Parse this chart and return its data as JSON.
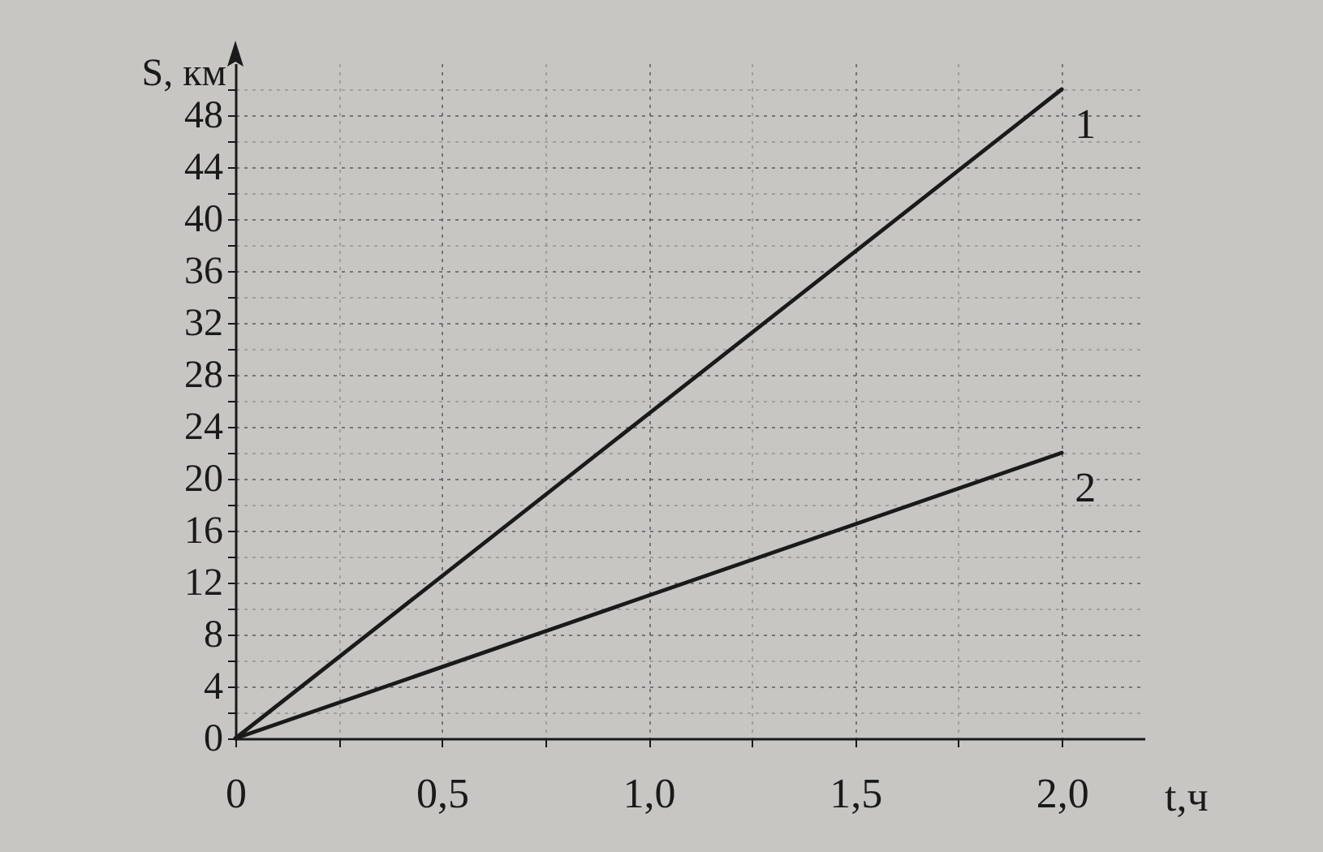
{
  "chart_data": {
    "type": "line",
    "xlabel": "t,ч",
    "ylabel": "S, км",
    "x": [
      0,
      2
    ],
    "series": [
      {
        "name": "1",
        "color": "#1a1a1a",
        "values": [
          0,
          50
        ]
      },
      {
        "name": "2",
        "color": "#1a1a1a",
        "values": [
          0,
          22
        ]
      }
    ],
    "xlim": [
      0,
      2.2
    ],
    "xticks": [
      0,
      {
        "value": 0.25,
        "label": null
      },
      {
        "value": 0.5,
        "label": "0,5"
      },
      {
        "value": 0.75,
        "label": null
      },
      {
        "value": 1,
        "label": "1,0"
      },
      {
        "value": 1.25,
        "label": null
      },
      {
        "value": 1.5,
        "label": "1,5"
      },
      {
        "value": 1.75,
        "label": null
      },
      {
        "value": 2,
        "label": "2,0"
      }
    ],
    "ylim": [
      0,
      52
    ],
    "yticks": [
      0,
      {
        "value": 2,
        "label": null
      },
      4,
      {
        "value": 6,
        "label": null
      },
      8,
      {
        "value": 10,
        "label": null
      },
      12,
      {
        "value": 14,
        "label": null
      },
      16,
      {
        "value": 18,
        "label": null
      },
      20,
      {
        "value": 22,
        "label": null
      },
      24,
      {
        "value": 26,
        "label": null
      },
      28,
      {
        "value": 30,
        "label": null
      },
      32,
      {
        "value": 34,
        "label": null
      },
      36,
      {
        "value": 38,
        "label": null
      },
      40,
      {
        "value": 42,
        "label": null
      },
      44,
      {
        "value": 46,
        "label": null
      },
      48,
      {
        "value": 50,
        "label": null
      }
    ],
    "grid": true
  }
}
